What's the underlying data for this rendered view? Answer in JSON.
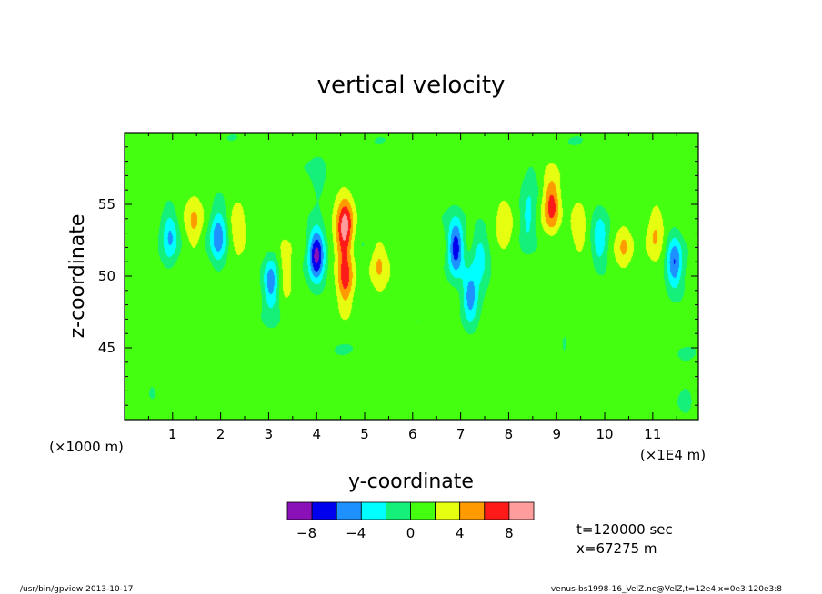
{
  "chart_data": {
    "type": "heatmap",
    "title": "vertical velocity",
    "xlabel": "y-coordinate",
    "ylabel": "z-coordinate",
    "x_unit_left": "(×1000 m)",
    "x_unit_right": "(×1E4 m)",
    "xlim": [
      0,
      11.95
    ],
    "ylim": [
      40,
      60
    ],
    "x_ticks": [
      1,
      2,
      3,
      4,
      5,
      6,
      7,
      8,
      9,
      10,
      11
    ],
    "y_ticks": [
      45,
      50,
      55
    ],
    "contour_levels": [
      -10,
      -8,
      -6,
      -4,
      -2,
      0,
      2,
      4,
      6,
      8,
      10
    ],
    "colorbar_ticks": [
      -8,
      -4,
      0,
      4,
      8
    ],
    "colorbar_colors": [
      "#8a10b8",
      "#0000ee",
      "#1e90ff",
      "#00ffff",
      "#14f07a",
      "#44ff10",
      "#e6ff10",
      "#ff9a00",
      "#ff1a1a",
      "#ff9c9c"
    ],
    "field_features": [
      {
        "y": 0.95,
        "z": 52.8,
        "value": -5
      },
      {
        "y": 1.45,
        "z": 53.5,
        "value": 3
      },
      {
        "y": 1.95,
        "z": 52.8,
        "value": -6
      },
      {
        "y": 2.35,
        "z": 53.5,
        "value": 3
      },
      {
        "y": 3.05,
        "z": 49.5,
        "value": -6
      },
      {
        "y": 3.35,
        "z": 50.2,
        "value": 3
      },
      {
        "y": 4.0,
        "z": 51.5,
        "value": -10
      },
      {
        "y": 4.55,
        "z": 52.5,
        "value": 3
      },
      {
        "y": 4.6,
        "z": 53.7,
        "value": 6
      },
      {
        "y": 4.6,
        "z": 49.7,
        "value": 6
      },
      {
        "y": 5.3,
        "z": 51.0,
        "value": 3
      },
      {
        "y": 6.9,
        "z": 52.0,
        "value": -9
      },
      {
        "y": 7.4,
        "z": 51.5,
        "value": -4
      },
      {
        "y": 7.2,
        "z": 48.5,
        "value": -6
      },
      {
        "y": 7.9,
        "z": 53.5,
        "value": 3
      },
      {
        "y": 8.4,
        "z": 54.0,
        "value": -4
      },
      {
        "y": 8.9,
        "z": 55.0,
        "value": 6
      },
      {
        "y": 9.45,
        "z": 53.5,
        "value": 3
      },
      {
        "y": 9.9,
        "z": 52.5,
        "value": -5
      },
      {
        "y": 10.4,
        "z": 52.0,
        "value": 3
      },
      {
        "y": 11.45,
        "z": 51.0,
        "value": -7
      },
      {
        "y": 11.05,
        "z": 53.0,
        "value": 3
      },
      {
        "y": 4.05,
        "z": 56.5,
        "value": -1.5
      },
      {
        "y": 8.5,
        "z": 56.5,
        "value": -1.5
      },
      {
        "y": 3.5,
        "z": 45.5,
        "value": -1
      },
      {
        "y": 9.2,
        "z": 44.5,
        "value": -1
      },
      {
        "y": 0.6,
        "z": 42.5,
        "value": -1
      },
      {
        "y": 11.7,
        "z": 41.5,
        "value": -1
      }
    ]
  },
  "annotations": {
    "time": "t=120000 sec",
    "xpos": "x=67275 m"
  },
  "footer": {
    "left": "/usr/bin/gpview   2013-10-17",
    "right": "venus-bs1998-16_VelZ.nc@VelZ,t=12e4,x=0e3:120e3:8"
  }
}
